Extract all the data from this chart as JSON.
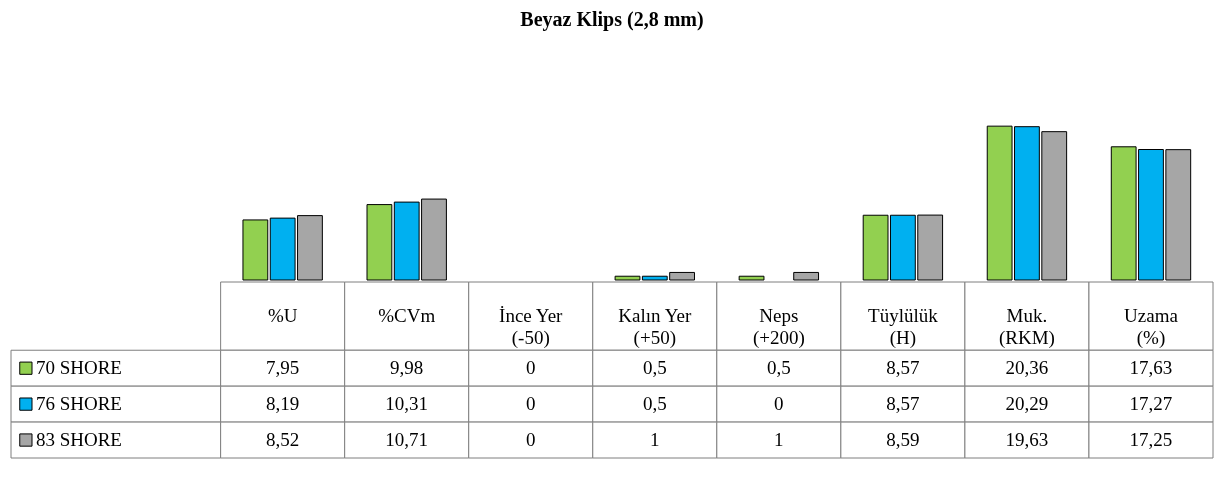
{
  "chart_data": {
    "type": "bar",
    "title": "Beyaz Klips (2,8 mm)",
    "categories": [
      "%U",
      "%CVm",
      "İnce Yer (-50)",
      "Kalın Yer (+50)",
      "Neps (+200)",
      "Tüylülük (H)",
      "Muk. (RKM)",
      "Uzama (%)"
    ],
    "series": [
      {
        "name": "70 SHORE",
        "color": "#92d050",
        "values": [
          7.95,
          9.98,
          0,
          0.5,
          0.5,
          8.57,
          20.36,
          17.63
        ],
        "value_labels": [
          "7,95",
          "9,98",
          "0",
          "0,5",
          "0,5",
          "8,57",
          "20,36",
          "17,63"
        ]
      },
      {
        "name": "76 SHORE",
        "color": "#00b0f0",
        "values": [
          8.19,
          10.31,
          0,
          0.5,
          0,
          8.57,
          20.29,
          17.27
        ],
        "value_labels": [
          "8,19",
          "10,31",
          "0",
          "0,5",
          "0",
          "8,57",
          "20,29",
          "17,27"
        ]
      },
      {
        "name": "83 SHORE",
        "color": "#a6a6a6",
        "values": [
          8.52,
          10.71,
          0,
          1,
          1,
          8.59,
          19.63,
          17.25
        ],
        "value_labels": [
          "8,52",
          "10,71",
          "0",
          "1",
          "1",
          "8,59",
          "19,63",
          "17,25"
        ]
      }
    ],
    "legend": "bottom left"
  }
}
